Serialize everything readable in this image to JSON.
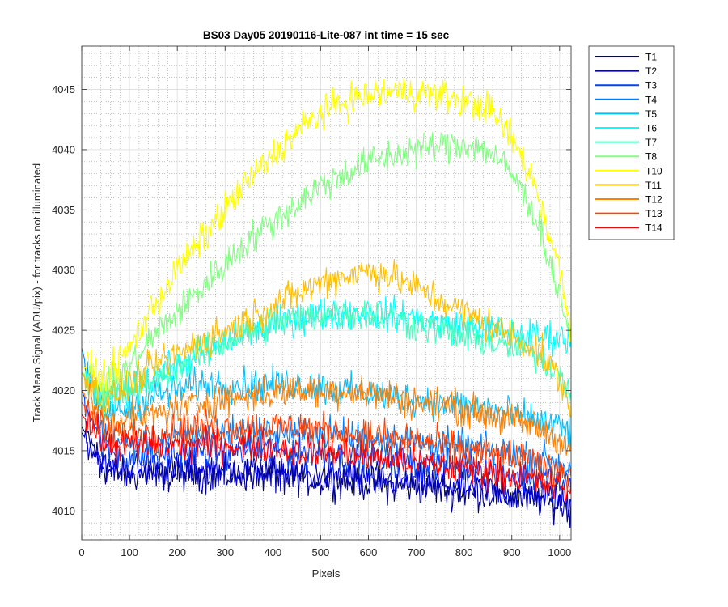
{
  "chart_data": {
    "type": "line",
    "title": "BS03 Day05 20190116-Lite-087 int time = 15 sec",
    "xlabel": "Pixels",
    "ylabel": "Track Mean Signal (ADU/pix) - for tracks not illuminated",
    "xlim": [
      0,
      1024
    ],
    "ylim": [
      4007.6,
      4048.6
    ],
    "x_ticks": [
      0,
      100,
      200,
      300,
      400,
      500,
      600,
      700,
      800,
      900,
      1000
    ],
    "x_tick_labels": [
      "0",
      "100",
      "200",
      "300",
      "400",
      "500",
      "600",
      "700",
      "800",
      "900",
      "1000"
    ],
    "y_ticks": [
      4010,
      4015,
      4020,
      4025,
      4030,
      4035,
      4040,
      4045
    ],
    "y_tick_labels": [
      "4010",
      "4015",
      "4020",
      "4025",
      "4030",
      "4035",
      "4040",
      "4045"
    ],
    "grid": "major and minor, dotted",
    "legend_position": "outside top-right",
    "x": [
      0,
      50,
      100,
      150,
      200,
      250,
      300,
      350,
      400,
      450,
      500,
      550,
      600,
      650,
      700,
      750,
      800,
      850,
      900,
      950,
      1000,
      1024
    ],
    "series": [
      {
        "name": "T1",
        "color": "#00008f",
        "values": [
          4017.0,
          4013.5,
          4013.0,
          4013.0,
          4013.0,
          4013.0,
          4013.0,
          4013.0,
          4013.0,
          4012.8,
          4012.5,
          4012.5,
          4012.3,
          4012.0,
          4012.0,
          4011.8,
          4011.5,
          4011.5,
          4011.0,
          4011.0,
          4010.5,
          4010.0
        ]
      },
      {
        "name": "T2",
        "color": "#0000cc",
        "values": [
          4016.5,
          4013.5,
          4013.5,
          4013.5,
          4013.5,
          4013.5,
          4013.5,
          4013.3,
          4013.2,
          4013.0,
          4013.0,
          4013.0,
          4012.8,
          4012.5,
          4012.5,
          4012.3,
          4012.0,
          4012.0,
          4011.5,
          4011.5,
          4011.0,
          4010.5
        ]
      },
      {
        "name": "T3",
        "color": "#0040ff",
        "values": [
          4020.0,
          4015.0,
          4014.5,
          4014.5,
          4014.8,
          4015.0,
          4015.0,
          4015.0,
          4015.0,
          4014.8,
          4014.8,
          4014.5,
          4014.5,
          4014.3,
          4014.0,
          4014.0,
          4013.8,
          4013.5,
          4013.0,
          4012.8,
          4012.3,
          4012.0
        ]
      },
      {
        "name": "T4",
        "color": "#0080ff",
        "values": [
          4023.5,
          4016.0,
          4015.5,
          4015.8,
          4016.0,
          4016.3,
          4016.5,
          4016.5,
          4016.5,
          4016.5,
          4016.5,
          4016.3,
          4016.0,
          4016.0,
          4015.8,
          4015.5,
          4015.3,
          4015.0,
          4014.8,
          4014.5,
          4014.0,
          4013.5
        ]
      },
      {
        "name": "T5",
        "color": "#00bfff",
        "values": [
          4021.5,
          4018.0,
          4018.5,
          4019.5,
          4020.0,
          4020.5,
          4020.5,
          4020.5,
          4020.5,
          4020.5,
          4020.3,
          4020.0,
          4019.8,
          4019.5,
          4019.3,
          4019.0,
          4018.8,
          4018.5,
          4018.0,
          4017.5,
          4017.0,
          4016.5
        ]
      },
      {
        "name": "T6",
        "color": "#00ffff",
        "values": [
          4021.5,
          4019.0,
          4020.0,
          4021.0,
          4022.0,
          4023.0,
          4024.0,
          4024.8,
          4025.5,
          4026.0,
          4026.3,
          4026.5,
          4026.5,
          4026.3,
          4026.0,
          4025.5,
          4025.3,
          4025.0,
          4024.8,
          4024.5,
          4024.5,
          4024.0
        ]
      },
      {
        "name": "T7",
        "color": "#40ffbf",
        "values": [
          4021.5,
          4019.0,
          4020.0,
          4021.0,
          4022.0,
          4023.0,
          4024.0,
          4024.8,
          4025.5,
          4026.0,
          4026.3,
          4026.5,
          4026.3,
          4026.0,
          4025.5,
          4025.0,
          4024.5,
          4024.0,
          4023.5,
          4023.0,
          4021.5,
          4020.0
        ]
      },
      {
        "name": "T8",
        "color": "#80ff80",
        "values": [
          4021.5,
          4020.0,
          4022.0,
          4024.5,
          4026.5,
          4028.5,
          4030.5,
          4032.5,
          4034.0,
          4035.5,
          4037.0,
          4038.0,
          4039.0,
          4039.5,
          4040.0,
          4040.3,
          4040.5,
          4040.0,
          4038.0,
          4034.5,
          4028.0,
          4024.5
        ]
      },
      {
        "name": "T10",
        "color": "#ffff00",
        "values": [
          4022.0,
          4021.0,
          4023.5,
          4027.0,
          4030.0,
          4032.5,
          4035.0,
          4037.5,
          4039.5,
          4041.5,
          4043.0,
          4044.0,
          4044.5,
          4044.8,
          4044.8,
          4044.5,
          4044.0,
          4043.5,
          4041.0,
          4037.0,
          4030.0,
          4025.0
        ]
      },
      {
        "name": "T11",
        "color": "#ffbf00",
        "values": [
          4021.5,
          4019.0,
          4020.5,
          4022.0,
          4023.0,
          4024.0,
          4025.0,
          4026.0,
          4027.0,
          4028.0,
          4029.0,
          4029.5,
          4030.0,
          4029.5,
          4028.5,
          4027.5,
          4026.5,
          4025.5,
          4024.5,
          4023.5,
          4021.0,
          4018.5
        ]
      },
      {
        "name": "T12",
        "color": "#ff8000",
        "values": [
          4020.0,
          4017.5,
          4017.5,
          4018.0,
          4018.5,
          4019.0,
          4019.3,
          4019.5,
          4019.8,
          4020.0,
          4020.0,
          4020.0,
          4019.8,
          4019.5,
          4019.0,
          4018.8,
          4018.5,
          4018.0,
          4017.5,
          4017.0,
          4016.0,
          4015.0
        ]
      },
      {
        "name": "T13",
        "color": "#ff4000",
        "values": [
          4019.0,
          4016.5,
          4016.5,
          4016.5,
          4016.8,
          4017.0,
          4017.0,
          4017.0,
          4017.0,
          4017.0,
          4016.8,
          4016.5,
          4016.3,
          4016.0,
          4015.8,
          4015.5,
          4015.0,
          4014.8,
          4014.5,
          4014.0,
          4013.5,
          4013.0
        ]
      },
      {
        "name": "T14",
        "color": "#ff0000",
        "values": [
          4018.0,
          4015.5,
          4015.5,
          4015.5,
          4015.5,
          4015.5,
          4015.5,
          4015.5,
          4015.3,
          4015.0,
          4015.0,
          4014.8,
          4014.5,
          4014.3,
          4014.0,
          4013.8,
          4013.5,
          4013.3,
          4013.0,
          4012.5,
          4012.0,
          4011.5
        ]
      }
    ]
  }
}
